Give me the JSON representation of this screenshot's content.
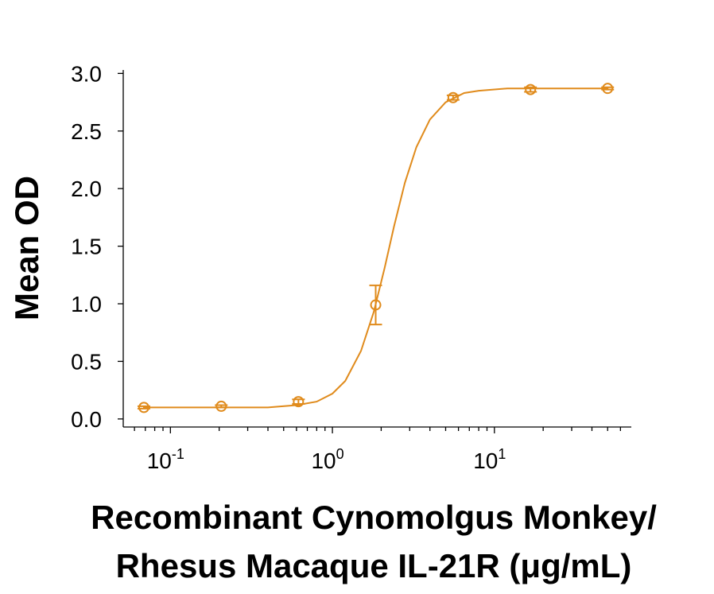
{
  "chart_data": {
    "type": "scatter",
    "y_label": "Mean OD",
    "x_label": [
      "Recombinant Cynomolgus Monkey/",
      "Rhesus Macaque IL-21R (μg/mL)"
    ],
    "x_scale": "log",
    "xlim": [
      0.05,
      70
    ],
    "ylim": [
      -0.07,
      3.03
    ],
    "xticks": [
      {
        "value": 0.1,
        "label": "10",
        "exponent": "-1"
      },
      {
        "value": 1,
        "label": "10",
        "exponent": "0"
      },
      {
        "value": 10,
        "label": "10",
        "exponent": "1"
      }
    ],
    "xminor_ticks": [
      0.06,
      0.07,
      0.08,
      0.09,
      0.2,
      0.3,
      0.4,
      0.5,
      0.6,
      0.7,
      0.8,
      0.9,
      2,
      3,
      4,
      5,
      6,
      7,
      8,
      9,
      20,
      30,
      40,
      50,
      60
    ],
    "yticks": [
      {
        "value": 0,
        "label": "0.0"
      },
      0.5,
      {
        "value": 1,
        "label": "1.0"
      },
      1.5,
      {
        "value": 2,
        "label": "2.0"
      },
      2.5,
      {
        "value": 3,
        "label": "3.0"
      }
    ],
    "series": [
      {
        "color": "#e08b1c",
        "x": [
          0.0686,
          0.206,
          0.617,
          1.85,
          5.56,
          16.7,
          50
        ],
        "values": [
          0.1,
          0.11,
          0.15,
          0.99,
          2.79,
          2.86,
          2.87
        ],
        "errors": [
          0.01,
          0.01,
          0.02,
          0.17,
          0.02,
          0.02,
          0.01
        ]
      }
    ],
    "curve": {
      "color": "#e08b1c",
      "x": [
        0.0686,
        0.2,
        0.4,
        0.6,
        0.8,
        1.0,
        1.2,
        1.5,
        1.8,
        2.1,
        2.4,
        2.8,
        3.3,
        4,
        5,
        6.5,
        8,
        12,
        20,
        50
      ],
      "values": [
        0.1,
        0.1,
        0.1,
        0.12,
        0.15,
        0.22,
        0.33,
        0.59,
        0.93,
        1.31,
        1.67,
        2.05,
        2.36,
        2.6,
        2.75,
        2.83,
        2.85,
        2.87,
        2.87,
        2.87
      ]
    }
  }
}
